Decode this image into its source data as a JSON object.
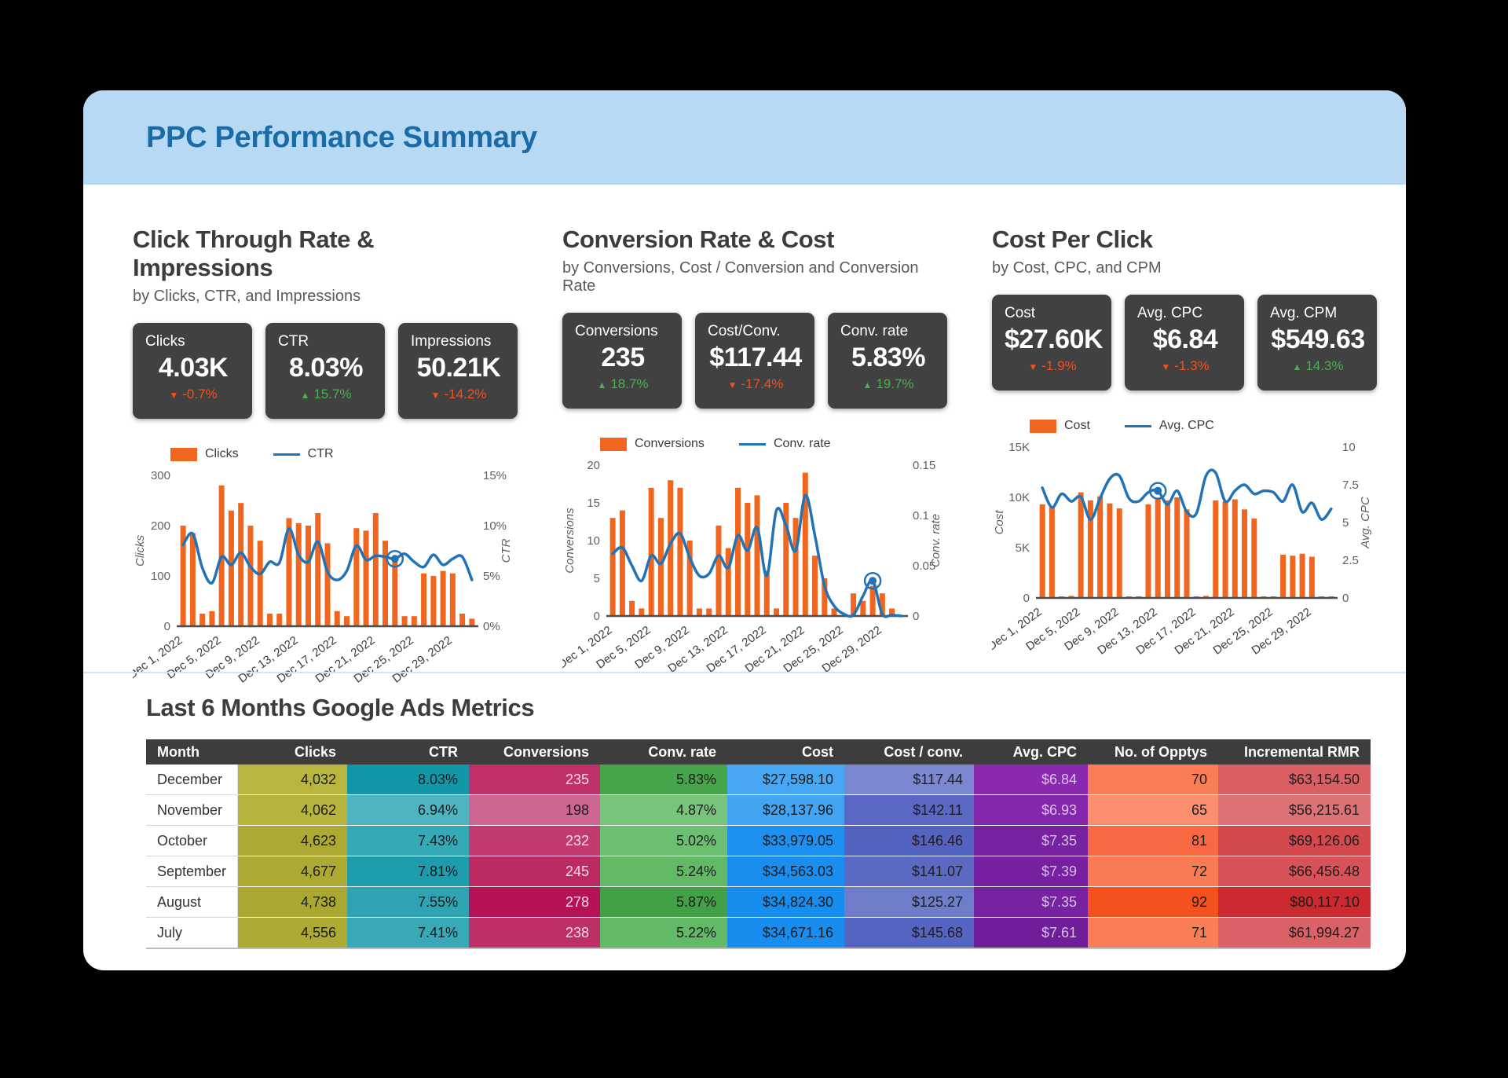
{
  "page": {
    "title": "PPC Performance Summary"
  },
  "theme": {
    "header_bg": "#b7d9f4",
    "title_color": "#1a6ca8",
    "kpi_bg": "#414141",
    "bar_color": "#f0661e",
    "line_color": "#2272b8",
    "positive_color": "#4caf50",
    "negative_color": "#f4511e"
  },
  "sections": [
    {
      "title": "Click Through Rate & Impressions",
      "subtitle": "by Clicks, CTR, and Impressions",
      "kpis": [
        {
          "label": "Clicks",
          "value": "4.03K",
          "change": "-0.7%",
          "direction": "down"
        },
        {
          "label": "CTR",
          "value": "8.03%",
          "change": "15.7%",
          "direction": "up"
        },
        {
          "label": "Impressions",
          "value": "50.21K",
          "change": "-14.2%",
          "direction": "down"
        }
      ]
    },
    {
      "title": "Conversion Rate & Cost",
      "subtitle": "by Conversions, Cost / Conversion and Conversion Rate",
      "kpis": [
        {
          "label": "Conversions",
          "value": "235",
          "change": "18.7%",
          "direction": "up"
        },
        {
          "label": "Cost/Conv.",
          "value": "$117.44",
          "change": "-17.4%",
          "direction": "down"
        },
        {
          "label": "Conv. rate",
          "value": "5.83%",
          "change": "19.7%",
          "direction": "up"
        }
      ]
    },
    {
      "title": "Cost Per Click",
      "subtitle": "by Cost, CPC, and CPM",
      "kpis": [
        {
          "label": "Cost",
          "value": "$27.60K",
          "change": "-1.9%",
          "direction": "down"
        },
        {
          "label": "Avg. CPC",
          "value": "$6.84",
          "change": "-1.3%",
          "direction": "down"
        },
        {
          "label": "Avg. CPM",
          "value": "$549.63",
          "change": "14.3%",
          "direction": "up"
        }
      ]
    }
  ],
  "chart_data": [
    {
      "type": "bar+line",
      "title": "Click Through Rate & Impressions",
      "categories": [
        "Dec 1, 2022",
        "Dec 2, 2022",
        "Dec 3, 2022",
        "Dec 4, 2022",
        "Dec 5, 2022",
        "Dec 6, 2022",
        "Dec 7, 2022",
        "Dec 8, 2022",
        "Dec 9, 2022",
        "Dec 10, 2022",
        "Dec 11, 2022",
        "Dec 12, 2022",
        "Dec 13, 2022",
        "Dec 14, 2022",
        "Dec 15, 2022",
        "Dec 16, 2022",
        "Dec 17, 2022",
        "Dec 18, 2022",
        "Dec 19, 2022",
        "Dec 20, 2022",
        "Dec 21, 2022",
        "Dec 22, 2022",
        "Dec 23, 2022",
        "Dec 24, 2022",
        "Dec 25, 2022",
        "Dec 26, 2022",
        "Dec 27, 2022",
        "Dec 28, 2022",
        "Dec 29, 2022",
        "Dec 30, 2022",
        "Dec 31, 2022"
      ],
      "bars": {
        "name": "Clicks",
        "color": "#f0661e",
        "values": [
          200,
          185,
          25,
          30,
          280,
          230,
          245,
          200,
          170,
          25,
          25,
          215,
          205,
          200,
          225,
          165,
          30,
          20,
          195,
          190,
          225,
          170,
          135,
          20,
          20,
          105,
          100,
          110,
          105,
          25,
          15
        ]
      },
      "line": {
        "name": "CTR",
        "color": "#2272b8",
        "values": [
          8.1,
          9.2,
          5.8,
          4.3,
          6.9,
          6.1,
          7.3,
          5.9,
          5.2,
          6.4,
          6.3,
          9.7,
          7.1,
          6.4,
          8.4,
          5.4,
          4.6,
          5.5,
          8.0,
          6.6,
          7.0,
          6.9,
          6.7,
          7.2,
          6.4,
          5.9,
          7.1,
          6.1,
          6.7,
          6.9,
          4.6
        ]
      },
      "left_axis": {
        "title": "Clicks",
        "max": 300,
        "ticks": [
          {
            "v": 0,
            "label": "0"
          },
          {
            "v": 100,
            "label": "100"
          },
          {
            "v": 200,
            "label": "200"
          },
          {
            "v": 300,
            "label": "300"
          }
        ]
      },
      "right_axis": {
        "title": "CTR",
        "max": 15,
        "ticks": [
          {
            "v": 0,
            "label": "0%"
          },
          {
            "v": 5,
            "label": "5%"
          },
          {
            "v": 10,
            "label": "10%"
          },
          {
            "v": 15,
            "label": "15%"
          }
        ]
      },
      "x_tick_every": 4,
      "highlight_index": 22
    },
    {
      "type": "bar+line",
      "title": "Conversion Rate & Cost",
      "categories": [
        "Dec 1, 2022",
        "Dec 2, 2022",
        "Dec 3, 2022",
        "Dec 4, 2022",
        "Dec 5, 2022",
        "Dec 6, 2022",
        "Dec 7, 2022",
        "Dec 8, 2022",
        "Dec 9, 2022",
        "Dec 10, 2022",
        "Dec 11, 2022",
        "Dec 12, 2022",
        "Dec 13, 2022",
        "Dec 14, 2022",
        "Dec 15, 2022",
        "Dec 16, 2022",
        "Dec 17, 2022",
        "Dec 18, 2022",
        "Dec 19, 2022",
        "Dec 20, 2022",
        "Dec 21, 2022",
        "Dec 22, 2022",
        "Dec 23, 2022",
        "Dec 24, 2022",
        "Dec 25, 2022",
        "Dec 26, 2022",
        "Dec 27, 2022",
        "Dec 28, 2022",
        "Dec 29, 2022",
        "Dec 30, 2022",
        "Dec 31, 2022"
      ],
      "bars": {
        "name": "Conversions",
        "color": "#f0661e",
        "values": [
          13,
          14,
          2,
          1,
          17,
          13,
          18,
          17,
          10,
          1,
          1,
          12,
          9,
          17,
          15,
          16,
          6,
          1,
          15,
          13,
          19,
          8,
          5,
          1,
          0,
          3,
          2,
          4,
          3,
          1,
          0
        ]
      },
      "line": {
        "name": "Conv. rate",
        "color": "#2272b8",
        "values": [
          0.062,
          0.068,
          0.05,
          0.035,
          0.06,
          0.052,
          0.072,
          0.082,
          0.058,
          0.04,
          0.042,
          0.06,
          0.048,
          0.08,
          0.065,
          0.088,
          0.04,
          0.105,
          0.09,
          0.065,
          0.12,
          0.08,
          0.03,
          0.01,
          0.002,
          0.001,
          0.02,
          0.035,
          0.002,
          0.001,
          0.0
        ]
      },
      "left_axis": {
        "title": "Conversions",
        "max": 20,
        "ticks": [
          {
            "v": 0,
            "label": "0"
          },
          {
            "v": 5,
            "label": "5"
          },
          {
            "v": 10,
            "label": "10"
          },
          {
            "v": 15,
            "label": "15"
          },
          {
            "v": 20,
            "label": "20"
          }
        ]
      },
      "right_axis": {
        "title": "Conv. rate",
        "max": 0.15,
        "ticks": [
          {
            "v": 0,
            "label": "0"
          },
          {
            "v": 0.05,
            "label": "0.05"
          },
          {
            "v": 0.1,
            "label": "0.1"
          },
          {
            "v": 0.15,
            "label": "0.15"
          }
        ]
      },
      "x_tick_every": 4,
      "highlight_index": 27
    },
    {
      "type": "bar+line",
      "title": "Cost Per Click",
      "categories": [
        "Dec 1, 2022",
        "Dec 2, 2022",
        "Dec 3, 2022",
        "Dec 4, 2022",
        "Dec 5, 2022",
        "Dec 6, 2022",
        "Dec 7, 2022",
        "Dec 8, 2022",
        "Dec 9, 2022",
        "Dec 10, 2022",
        "Dec 11, 2022",
        "Dec 12, 2022",
        "Dec 13, 2022",
        "Dec 14, 2022",
        "Dec 15, 2022",
        "Dec 16, 2022",
        "Dec 17, 2022",
        "Dec 18, 2022",
        "Dec 19, 2022",
        "Dec 20, 2022",
        "Dec 21, 2022",
        "Dec 22, 2022",
        "Dec 23, 2022",
        "Dec 24, 2022",
        "Dec 25, 2022",
        "Dec 26, 2022",
        "Dec 27, 2022",
        "Dec 28, 2022",
        "Dec 29, 2022",
        "Dec 30, 2022",
        "Dec 31, 2022"
      ],
      "bars": {
        "name": "Cost",
        "color": "#f0661e",
        "values": [
          9300,
          9000,
          150,
          200,
          10500,
          9700,
          10100,
          9400,
          8900,
          150,
          150,
          9300,
          9800,
          9700,
          10000,
          8800,
          150,
          200,
          9700,
          9600,
          9800,
          8800,
          7900,
          100,
          100,
          4300,
          4200,
          4400,
          4100,
          150,
          100
        ]
      },
      "line": {
        "name": "Avg. CPC",
        "color": "#2272b8",
        "values": [
          7.3,
          6.0,
          6.9,
          6.4,
          6.7,
          5.2,
          6.6,
          7.9,
          8.1,
          6.6,
          6.4,
          7.0,
          7.1,
          6.2,
          7.1,
          5.7,
          5.6,
          8.1,
          8.3,
          6.4,
          7.1,
          7.5,
          6.9,
          7.1,
          7.0,
          6.4,
          7.5,
          5.7,
          6.3,
          5.2,
          5.9
        ]
      },
      "left_axis": {
        "title": "Cost",
        "max": 15000,
        "ticks": [
          {
            "v": 0,
            "label": "0"
          },
          {
            "v": 5000,
            "label": "5K"
          },
          {
            "v": 10000,
            "label": "10K"
          },
          {
            "v": 15000,
            "label": "15K"
          }
        ]
      },
      "right_axis": {
        "title": "Avg. CPC",
        "max": 10,
        "ticks": [
          {
            "v": 0,
            "label": "0"
          },
          {
            "v": 2.5,
            "label": "2.5"
          },
          {
            "v": 5,
            "label": "5"
          },
          {
            "v": 7.5,
            "label": "7.5"
          },
          {
            "v": 10,
            "label": "10"
          }
        ]
      },
      "x_tick_every": 4,
      "highlight_index": 12
    }
  ],
  "table": {
    "title": "Last 6 Months Google Ads Metrics",
    "columns": [
      "Month",
      "Clicks",
      "CTR",
      "Conversions",
      "Conv. rate",
      "Cost",
      "Cost / conv.",
      "Avg. CPC",
      "No. of Opptys",
      "Incremental RMR"
    ],
    "rows": [
      {
        "month": "December",
        "cells": [
          {
            "text": "4,032",
            "bg": "#b9b640"
          },
          {
            "text": "8.03%",
            "bg": "#1297a9"
          },
          {
            "text": "235",
            "bg": "#c13169",
            "fg": "#f5dbe7"
          },
          {
            "text": "5.83%",
            "bg": "#46a44a"
          },
          {
            "text": "$27,598.10",
            "bg": "#47a7f5"
          },
          {
            "text": "$117.44",
            "bg": "#7b87d1"
          },
          {
            "text": "$6.84",
            "bg": "#8a28b0",
            "fg": "#d9c2e8"
          },
          {
            "text": "70",
            "bg": "#f97d55"
          },
          {
            "text": "$63,154.50",
            "bg": "#d95f63"
          }
        ]
      },
      {
        "month": "November",
        "cells": [
          {
            "text": "4,062",
            "bg": "#b7b43e"
          },
          {
            "text": "6.94%",
            "bg": "#4fb3c0"
          },
          {
            "text": "198",
            "bg": "#ce6592"
          },
          {
            "text": "4.87%",
            "bg": "#79c47c"
          },
          {
            "text": "$28,137.96",
            "bg": "#42a4f3"
          },
          {
            "text": "$142.11",
            "bg": "#5a68c3"
          },
          {
            "text": "$6.93",
            "bg": "#8527ac",
            "fg": "#d9c2e8"
          },
          {
            "text": "65",
            "bg": "#fb8e6c"
          },
          {
            "text": "$56,215.61",
            "bg": "#dd7276"
          }
        ]
      },
      {
        "month": "October",
        "cells": [
          {
            "text": "4,623",
            "bg": "#adaa34"
          },
          {
            "text": "7.43%",
            "bg": "#36a9b7"
          },
          {
            "text": "232",
            "bg": "#c23a70",
            "fg": "#f5dbe7"
          },
          {
            "text": "5.02%",
            "bg": "#6cbf70"
          },
          {
            "text": "$33,979.05",
            "bg": "#1e90f0"
          },
          {
            "text": "$146.46",
            "bg": "#5563c0"
          },
          {
            "text": "$7.35",
            "bg": "#7722a1",
            "fg": "#d3bfe2"
          },
          {
            "text": "81",
            "bg": "#f76843"
          },
          {
            "text": "$69,126.06",
            "bg": "#d4494e"
          }
        ]
      },
      {
        "month": "September",
        "cells": [
          {
            "text": "4,677",
            "bg": "#acaa32"
          },
          {
            "text": "7.81%",
            "bg": "#1d9cac"
          },
          {
            "text": "245",
            "bg": "#bd2a63",
            "fg": "#f5dbe7"
          },
          {
            "text": "5.24%",
            "bg": "#61b965"
          },
          {
            "text": "$34,563.03",
            "bg": "#1a8eef"
          },
          {
            "text": "$141.07",
            "bg": "#5b69c3"
          },
          {
            "text": "$7.39",
            "bg": "#761fa0",
            "fg": "#d3bfe2"
          },
          {
            "text": "72",
            "bg": "#f97b53"
          },
          {
            "text": "$66,456.48",
            "bg": "#d75359"
          }
        ]
      },
      {
        "month": "August",
        "cells": [
          {
            "text": "4,738",
            "bg": "#aaa831"
          },
          {
            "text": "7.55%",
            "bg": "#2ea4b2"
          },
          {
            "text": "278",
            "bg": "#b51355",
            "fg": "#f5dbe7"
          },
          {
            "text": "5.87%",
            "bg": "#42a046"
          },
          {
            "text": "$34,824.30",
            "bg": "#188df0"
          },
          {
            "text": "$125.27",
            "bg": "#6f7cca"
          },
          {
            "text": "$7.35",
            "bg": "#7722a1",
            "fg": "#d3bfe2"
          },
          {
            "text": "92",
            "bg": "#f4511e"
          },
          {
            "text": "$80,117.10",
            "bg": "#cb2a30"
          }
        ]
      },
      {
        "month": "July",
        "cells": [
          {
            "text": "4,556",
            "bg": "#aeab34"
          },
          {
            "text": "7.41%",
            "bg": "#37a9b7"
          },
          {
            "text": "238",
            "bg": "#bf2f67",
            "fg": "#f5dbe7"
          },
          {
            "text": "5.22%",
            "bg": "#62b966"
          },
          {
            "text": "$34,671.16",
            "bg": "#198def"
          },
          {
            "text": "$145.68",
            "bg": "#5664c1"
          },
          {
            "text": "$7.61",
            "bg": "#701d9a",
            "fg": "#d3bfe2"
          },
          {
            "text": "71",
            "bg": "#f97d56"
          },
          {
            "text": "$61,994.27",
            "bg": "#da6165"
          }
        ]
      }
    ]
  }
}
